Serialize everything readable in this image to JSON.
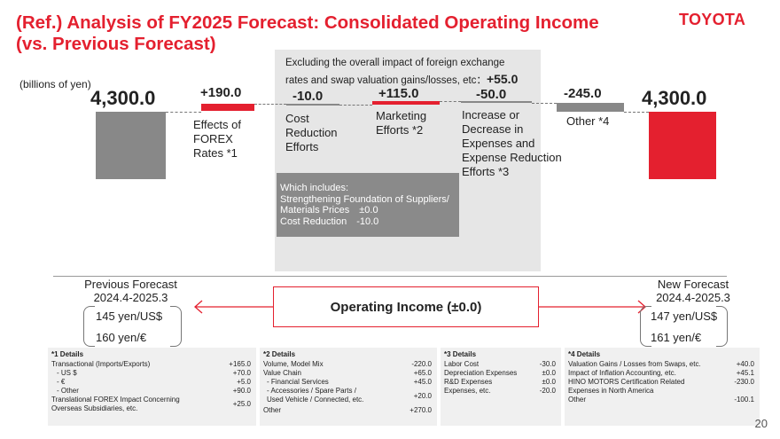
{
  "title": {
    "line1": "(Ref.) Analysis of FY2025 Forecast: Consolidated Operating Income",
    "line2": "(vs. Previous Forecast)"
  },
  "logo": "TOYOTA",
  "units": "(billions of yen)",
  "excluding": {
    "line1": "Excluding the overall impact of foreign exchange",
    "line2": "rates and swap valuation gains/losses, etc：",
    "value": "+55.0"
  },
  "colors": {
    "brand_red": "#e4202f",
    "bar_gray": "#888888"
  },
  "chart_data": {
    "type": "waterfall",
    "units": "billions of yen",
    "start": {
      "value": 4300.0,
      "label": "4,300.0"
    },
    "steps": [
      {
        "value": 190.0,
        "label": "+190.0",
        "desc": [
          "Effects of",
          "FOREX",
          "Rates *1"
        ]
      },
      {
        "value": -10.0,
        "label": "-10.0",
        "desc": [
          "Cost",
          "Reduction",
          "Efforts"
        ]
      },
      {
        "value": 115.0,
        "label": "+115.0",
        "desc": [
          "Marketing",
          "Efforts *2"
        ]
      },
      {
        "value": -50.0,
        "label": "-50.0",
        "desc": [
          "Increase or",
          "Decrease in",
          "Expenses and",
          "Expense Reduction",
          "Efforts *3"
        ]
      },
      {
        "value": -245.0,
        "label": "-245.0",
        "desc": [
          "Other *4"
        ]
      }
    ],
    "end": {
      "value": 4300.0,
      "label": "4,300.0"
    }
  },
  "includes": {
    "heading": "Which includes:",
    "line1": "Strengthening Foundation of Suppliers/",
    "line2": "Materials Prices　±0.0",
    "line3": "Cost Reduction　-10.0"
  },
  "previous": {
    "heading1": "Previous Forecast",
    "heading2": "2024.4-2025.3",
    "usd": "145 yen/US$",
    "eur": "160 yen/€"
  },
  "newf": {
    "heading1": "New Forecast",
    "heading2": "2024.4-2025.3",
    "usd": "147 yen/US$",
    "eur": "161 yen/€"
  },
  "operating_income": "Operating Income (±0.0)",
  "details": [
    {
      "title": "*1 Details",
      "rows": [
        {
          "label": "Transactional (Imports/Exports)",
          "value": "+165.0"
        },
        {
          "label": "- US $",
          "value": "+70.0"
        },
        {
          "label": "- €",
          "value": "+5.0"
        },
        {
          "label": "- Other",
          "value": "+90.0"
        },
        {
          "label": "Translational FOREX Impact Concerning",
          "label2": "Overseas Subsidiaries, etc.",
          "value": "+25.0"
        }
      ]
    },
    {
      "title": "*2 Details",
      "rows": [
        {
          "label": "Volume, Model Mix",
          "value": "-220.0"
        },
        {
          "label": "Value Chain",
          "value": "+65.0"
        },
        {
          "label": "- Financial Services",
          "value": "+45.0"
        },
        {
          "label": "- Accessories / Spare Parts /",
          "label2": "  Used Vehicle / Connected, etc.",
          "value": "+20.0"
        },
        {
          "label": "Other",
          "value": "+270.0"
        }
      ]
    },
    {
      "title": "*3 Details",
      "rows": [
        {
          "label": "Labor Cost",
          "value": "-30.0"
        },
        {
          "label": "Depreciation Expenses",
          "value": "±0.0"
        },
        {
          "label": "R&D Expenses",
          "value": "±0.0"
        },
        {
          "label": "Expenses, etc.",
          "value": "-20.0"
        }
      ]
    },
    {
      "title": "*4 Details",
      "rows": [
        {
          "label": "Valuation Gains / Losses from Swaps, etc.",
          "value": "+40.0"
        },
        {
          "label": "Impact of Inflation Accounting, etc.",
          "value": "+45.1"
        },
        {
          "label": "HINO MOTORS Certification Related",
          "label2": "Expenses in North America",
          "value": "-230.0"
        },
        {
          "label": "Other",
          "value": "-100.1"
        }
      ]
    }
  ],
  "page_number": "20"
}
